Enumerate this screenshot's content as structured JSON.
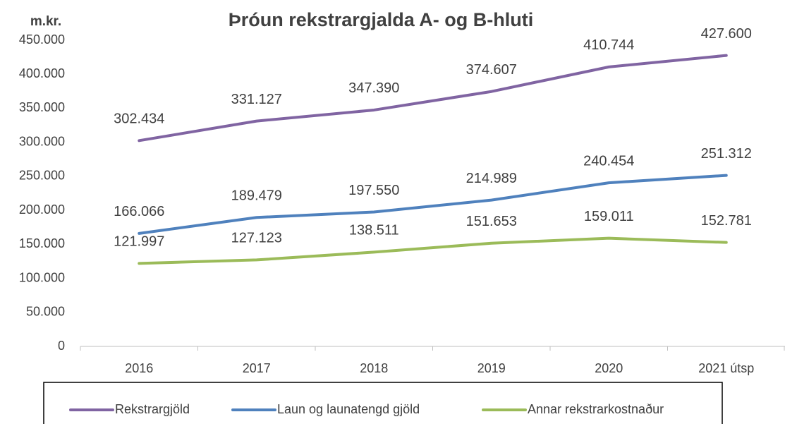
{
  "chart_data": {
    "type": "line",
    "title": "Þróun rekstrargjalda A- og B-hluti",
    "y_label": "m.kr.",
    "categories": [
      "2016",
      "2017",
      "2018",
      "2019",
      "2020",
      "2021 útsp"
    ],
    "series": [
      {
        "name": "Rekstrargjöld",
        "color": "#8064a2",
        "values": [
          302434,
          331127,
          347390,
          374607,
          410744,
          427600
        ],
        "value_labels": [
          "302.434",
          "331.127",
          "347.390",
          "374.607",
          "410.744",
          "427.600"
        ]
      },
      {
        "name": "Laun og launatengd gjöld",
        "color": "#4f81bd",
        "values": [
          166066,
          189479,
          197550,
          214989,
          240454,
          251312
        ],
        "value_labels": [
          "166.066",
          "189.479",
          "197.550",
          "214.989",
          "240.454",
          "251.312"
        ]
      },
      {
        "name": "Annar rekstrarkostnaður",
        "color": "#9bbb59",
        "values": [
          121997,
          127123,
          138511,
          151653,
          159011,
          152781
        ],
        "value_labels": [
          "121.997",
          "127.123",
          "138.511",
          "151.653",
          "159.011",
          "152.781"
        ]
      }
    ],
    "ylim": [
      0,
      450000
    ],
    "yticks": [
      0,
      {
        "value": 50000,
        "label": "50.000"
      },
      {
        "value": 100000,
        "label": "100.000"
      },
      {
        "value": 150000,
        "label": "150.000"
      },
      {
        "value": 200000,
        "label": "200.000"
      },
      {
        "value": 250000,
        "label": "250.000"
      },
      {
        "value": 300000,
        "label": "300.000"
      },
      {
        "value": 350000,
        "label": "350.000"
      },
      {
        "value": 400000,
        "label": "400.000"
      },
      {
        "value": 450000,
        "label": "450.000"
      }
    ],
    "legend": "bottom"
  }
}
